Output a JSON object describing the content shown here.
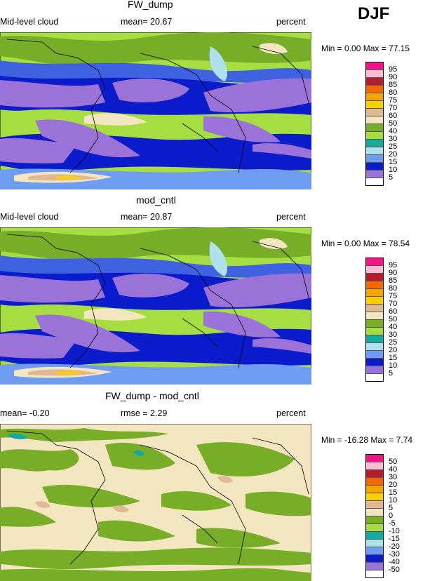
{
  "season": "DJF",
  "colors": {
    "c5": "#9a72d8",
    "c10": "#0a1ccc",
    "c15": "#3f62e0",
    "c20": "#6e9cf0",
    "c25": "#aee1ec",
    "c30": "#16a9a0",
    "c40": "#a6dd40",
    "c50": "#78ad28",
    "c60": "#f2e5c0",
    "c70": "#dfb894",
    "c75": "#f8d000",
    "c80": "#f8a400",
    "c85": "#f56800",
    "c90": "#d81c1c",
    "c95a": "#b41e2c",
    "c95b": "#f9bbd0",
    "c95c": "#f2148a"
  },
  "chart_data": [
    {
      "type": "heatmap",
      "title": "FW_dump",
      "left_label": "Mid-level cloud",
      "stat_label": "mean=  20.67",
      "units": "percent",
      "minmax": "Min =    0.00 Max =   77.15",
      "levels": [
        "5",
        "10",
        "15",
        "20",
        "25",
        "30",
        "40",
        "50",
        "60",
        "70",
        "75",
        "80",
        "85",
        "90",
        "95"
      ]
    },
    {
      "type": "heatmap",
      "title": "mod_cntl",
      "left_label": "Mid-level cloud",
      "stat_label": "mean=  20.87",
      "units": "percent",
      "minmax": "Min =    0.00 Max =   78.54",
      "levels": [
        "5",
        "10",
        "15",
        "20",
        "25",
        "30",
        "40",
        "50",
        "60",
        "70",
        "75",
        "80",
        "85",
        "90",
        "95"
      ]
    },
    {
      "type": "heatmap",
      "title": "FW_dump - mod_cntl",
      "left_label": "mean=  -0.20",
      "stat_label": "rmse =    2.29",
      "units": "percent",
      "minmax": "Min = -16.28 Max =    7.74",
      "levels": [
        "-50",
        "-40",
        "-30",
        "-20",
        "-15",
        "-10",
        "-5",
        "0",
        "5",
        "10",
        "15",
        "20",
        "30",
        "40",
        "50"
      ]
    }
  ]
}
